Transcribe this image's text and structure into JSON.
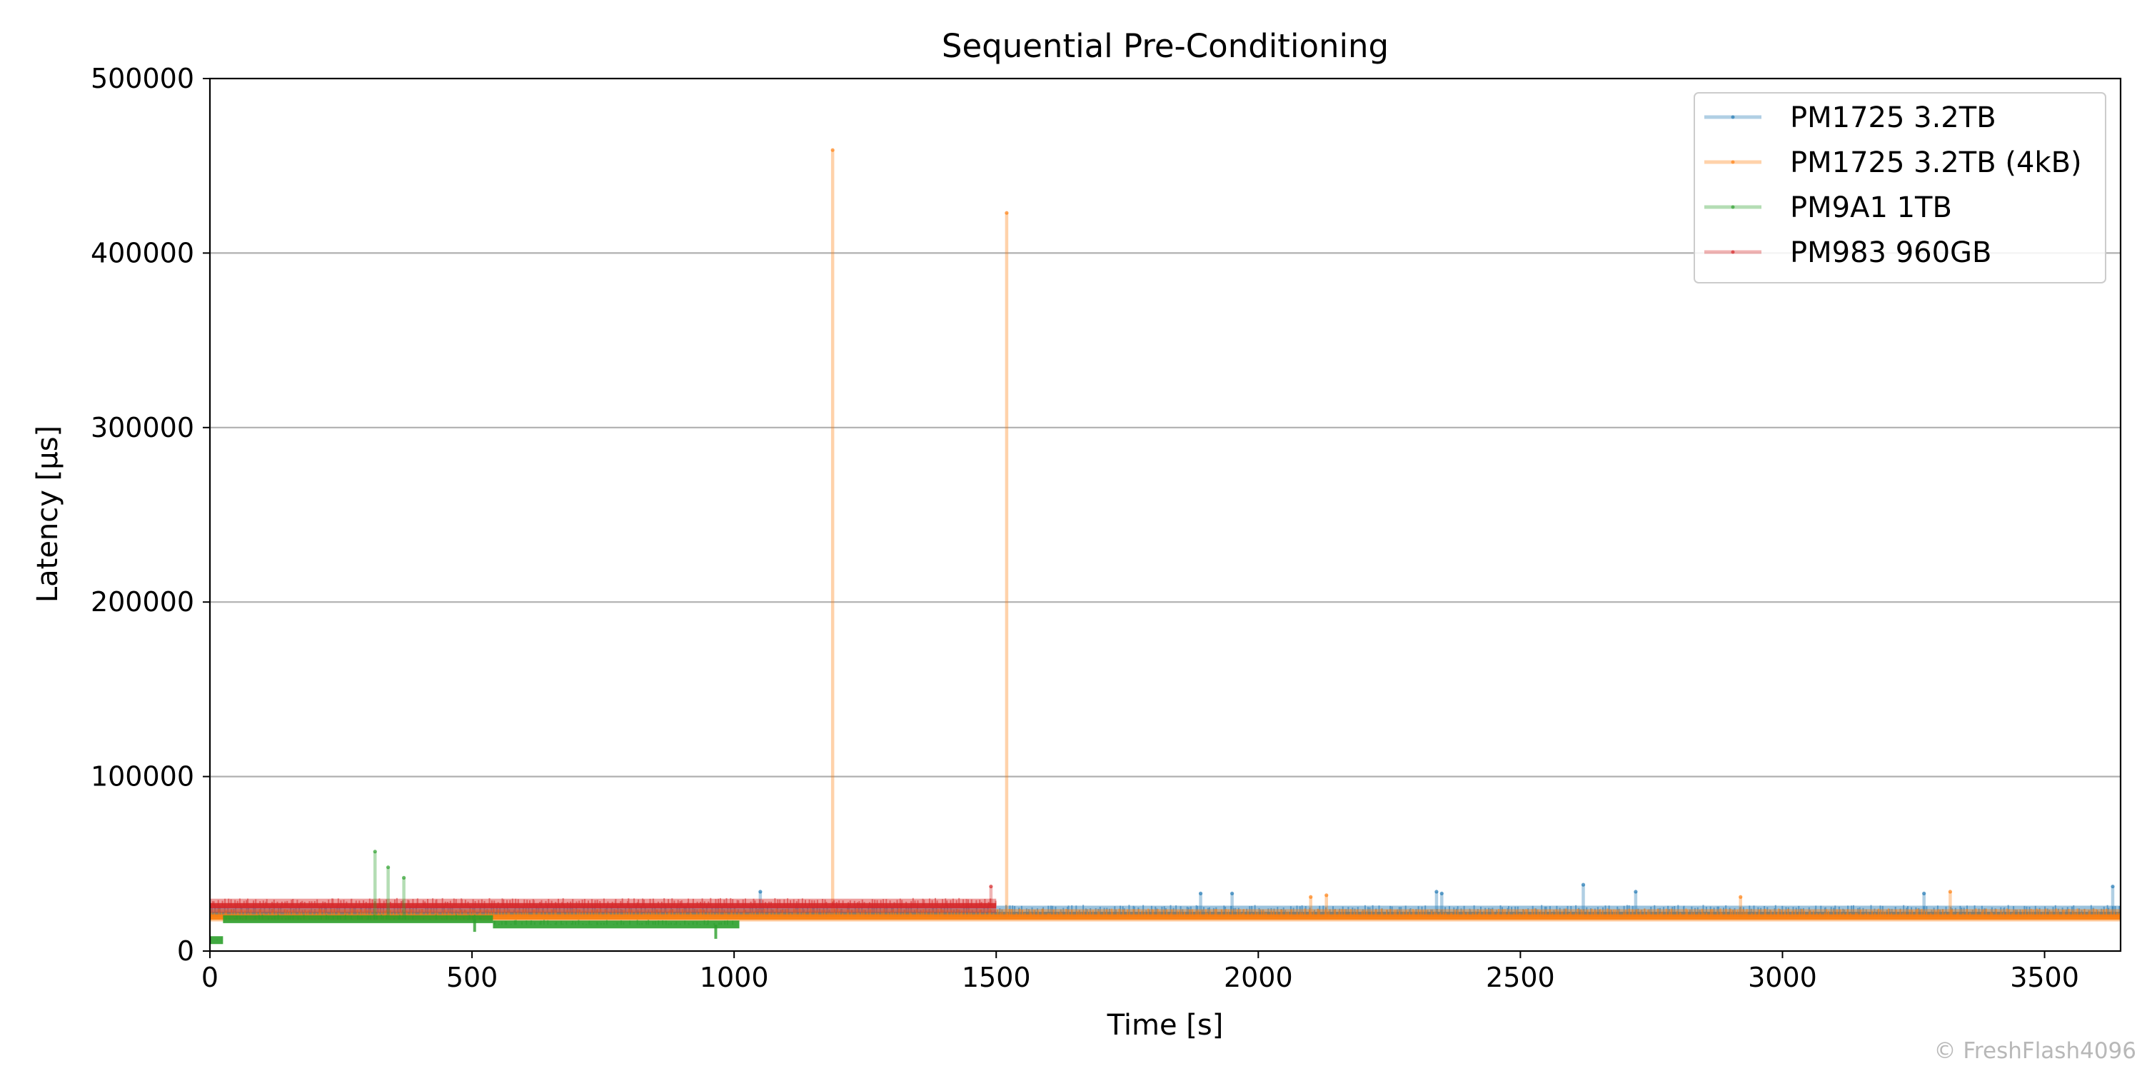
{
  "chart_data": {
    "type": "line",
    "title": "Sequential Pre-Conditioning",
    "xlabel": "Time [s]",
    "ylabel": "Latency [µs]",
    "xlim": [
      0,
      3645
    ],
    "ylim": [
      0,
      500000
    ],
    "xticks": [
      0,
      500,
      1000,
      1500,
      2000,
      2500,
      3000,
      3500
    ],
    "yticks": [
      0,
      100000,
      200000,
      300000,
      400000,
      500000
    ],
    "grid": "horizontal",
    "legend_position": "top-right",
    "series": [
      {
        "name": "PM1725 3.2TB",
        "color": "#1f77b4",
        "x_range": [
          0,
          3645
        ],
        "baseline": 21000,
        "band": [
          18000,
          26000
        ],
        "spikes": [
          [
            1050,
            34000
          ],
          [
            1890,
            33000
          ],
          [
            1950,
            33000
          ],
          [
            2340,
            34000
          ],
          [
            2350,
            33000
          ],
          [
            2620,
            38000
          ],
          [
            2720,
            34000
          ],
          [
            3270,
            33000
          ],
          [
            3630,
            37000
          ]
        ]
      },
      {
        "name": "PM1725 3.2TB (4kB)",
        "color": "#ff7f0e",
        "x_range": [
          0,
          3645
        ],
        "baseline": 19500,
        "band": [
          17000,
          24000
        ],
        "spikes": [
          [
            1188,
            459000
          ],
          [
            1520,
            423000
          ],
          [
            2100,
            31000
          ],
          [
            2130,
            32000
          ],
          [
            2920,
            31000
          ],
          [
            3320,
            34000
          ]
        ]
      },
      {
        "name": "PM9A1 1TB",
        "color": "#2ca02c",
        "x_range": [
          0,
          1010
        ],
        "segments": [
          [
            0,
            25,
            6000
          ],
          [
            25,
            540,
            18000
          ],
          [
            540,
            1010,
            15000
          ]
        ],
        "spikes": [
          [
            315,
            57000
          ],
          [
            340,
            48000
          ],
          [
            370,
            42000
          ]
        ],
        "dips": [
          [
            505,
            11000
          ],
          [
            965,
            7000
          ]
        ]
      },
      {
        "name": "PM983 960GB",
        "color": "#d62728",
        "x_range": [
          0,
          1500
        ],
        "baseline": 26000,
        "band": [
          22000,
          30000
        ],
        "spikes": [
          [
            1490,
            37000
          ]
        ]
      }
    ]
  },
  "watermark": "© FreshFlash4096"
}
